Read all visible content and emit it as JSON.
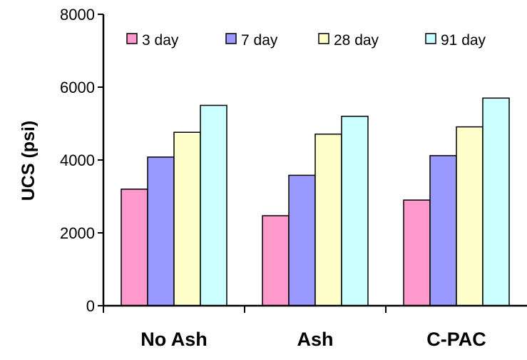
{
  "chart_data": {
    "type": "bar",
    "title": "",
    "xlabel": "",
    "ylabel": "UCS (psi)",
    "categories": [
      "No Ash",
      "Ash",
      "C-PAC"
    ],
    "series": [
      {
        "name": "3 day",
        "color": "#ff99cc",
        "values": [
          3200,
          2470,
          2900
        ]
      },
      {
        "name": "7 day",
        "color": "#9999ff",
        "values": [
          4080,
          3580,
          4120
        ]
      },
      {
        "name": "28 day",
        "color": "#ffffcc",
        "values": [
          4760,
          4710,
          4910
        ]
      },
      {
        "name": "91 day",
        "color": "#ccffff",
        "values": [
          5500,
          5200,
          5700
        ]
      }
    ],
    "ylim": [
      0,
      8000
    ],
    "yticks": [
      0,
      2000,
      4000,
      6000,
      8000
    ],
    "ytick_labels": [
      "0",
      "2000",
      "4000",
      "6000",
      "8000"
    ],
    "grid": false,
    "legend": {
      "placement": "top",
      "orientation": "horizontal"
    }
  }
}
